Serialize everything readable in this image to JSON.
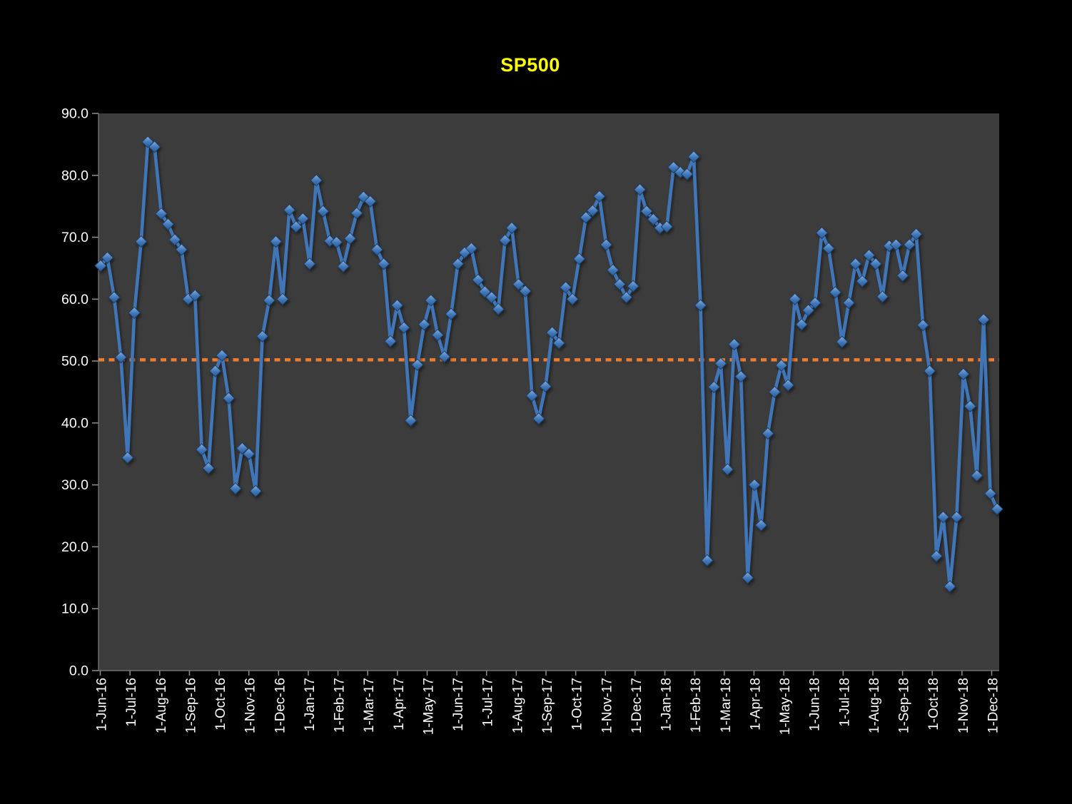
{
  "title": "SP500",
  "chart_data": {
    "type": "line",
    "title": "SP500",
    "xlabel": "",
    "ylabel": "",
    "ylim": [
      0,
      90
    ],
    "y_tick_labels": [
      "0.0",
      "10.0",
      "20.0",
      "30.0",
      "40.0",
      "50.0",
      "60.0",
      "70.0",
      "80.0",
      "90.0"
    ],
    "x_unit": "weekly",
    "x_monthly_ticks": [
      "1-Jun-16",
      "1-Jul-16",
      "1-Aug-16",
      "1-Sep-16",
      "1-Oct-16",
      "1-Nov-16",
      "1-Dec-16",
      "1-Jan-17",
      "1-Feb-17",
      "1-Mar-17",
      "1-Apr-17",
      "1-May-17",
      "1-Jun-17",
      "1-Jul-17",
      "1-Aug-17",
      "1-Sep-17",
      "1-Oct-17",
      "1-Nov-17",
      "1-Dec-17",
      "1-Jan-18",
      "1-Feb-18",
      "1-Mar-18",
      "1-Apr-18",
      "1-May-18",
      "1-Jun-18",
      "1-Jul-18",
      "1-Aug-18",
      "1-Sep-18",
      "1-Oct-18",
      "1-Nov-18",
      "1-Dec-18"
    ],
    "grid": "off",
    "legend": "none",
    "marker": "diamond",
    "series": [
      {
        "name": "SP500",
        "values": [
          65.4,
          66.7,
          60.3,
          50.6,
          34.4,
          57.8,
          69.3,
          85.4,
          84.6,
          73.8,
          72.1,
          69.6,
          68.0,
          60.0,
          60.6,
          35.7,
          32.7,
          48.4,
          50.9,
          44.0,
          29.4,
          35.9,
          35.0,
          29.0,
          54.0,
          59.8,
          69.3,
          60.0,
          74.4,
          71.7,
          73.0,
          65.7,
          79.2,
          74.2,
          69.4,
          69.2,
          65.3,
          69.8,
          73.9,
          76.5,
          75.8,
          68.0,
          65.7,
          53.2,
          59.0,
          55.4,
          40.4,
          49.4,
          55.9,
          59.8,
          54.2,
          50.7,
          57.6,
          65.7,
          67.5,
          68.2,
          63.1,
          61.2,
          60.3,
          58.4,
          69.5,
          71.5,
          62.4,
          61.3,
          44.4,
          40.7,
          45.9,
          54.6,
          52.9,
          61.9,
          60.0,
          66.5,
          73.2,
          74.3,
          76.6,
          68.8,
          64.7,
          62.4,
          60.3,
          62.1,
          77.7,
          74.2,
          72.9,
          71.5,
          71.7,
          81.3,
          80.5,
          80.2,
          83.0,
          59.0,
          17.8,
          45.8,
          49.6,
          32.5,
          52.7,
          47.5,
          15.0,
          30.0,
          23.5,
          38.3,
          45.0,
          49.3,
          46.1,
          60.0,
          55.9,
          58.2,
          59.4,
          70.7,
          68.2,
          61.1,
          53.1,
          59.4,
          65.7,
          62.9,
          67.1,
          65.7,
          60.4,
          68.6,
          68.8,
          63.8,
          68.8,
          70.5,
          55.8,
          48.4,
          18.5,
          24.8,
          13.6,
          24.8,
          47.9,
          42.7,
          31.5,
          56.7,
          28.6,
          26.1
        ]
      }
    ],
    "reference_line": {
      "value": 50.2,
      "style": "dotted",
      "color": "#ED7D31"
    }
  },
  "colors": {
    "page_background": "#000000",
    "plot_background": "#3C3C3C",
    "axis_line": "#7F7F7F",
    "tick_mark": "#909090",
    "axis_label": "#FFFFFF",
    "title": "#FFFF00",
    "series_line": "#4076B8",
    "marker_light": "#85AEDD",
    "marker_mid": "#4076B8",
    "marker_dark": "#2A5A96",
    "marker_edge": "#1E3F66",
    "reference_line": "#ED7D31"
  }
}
